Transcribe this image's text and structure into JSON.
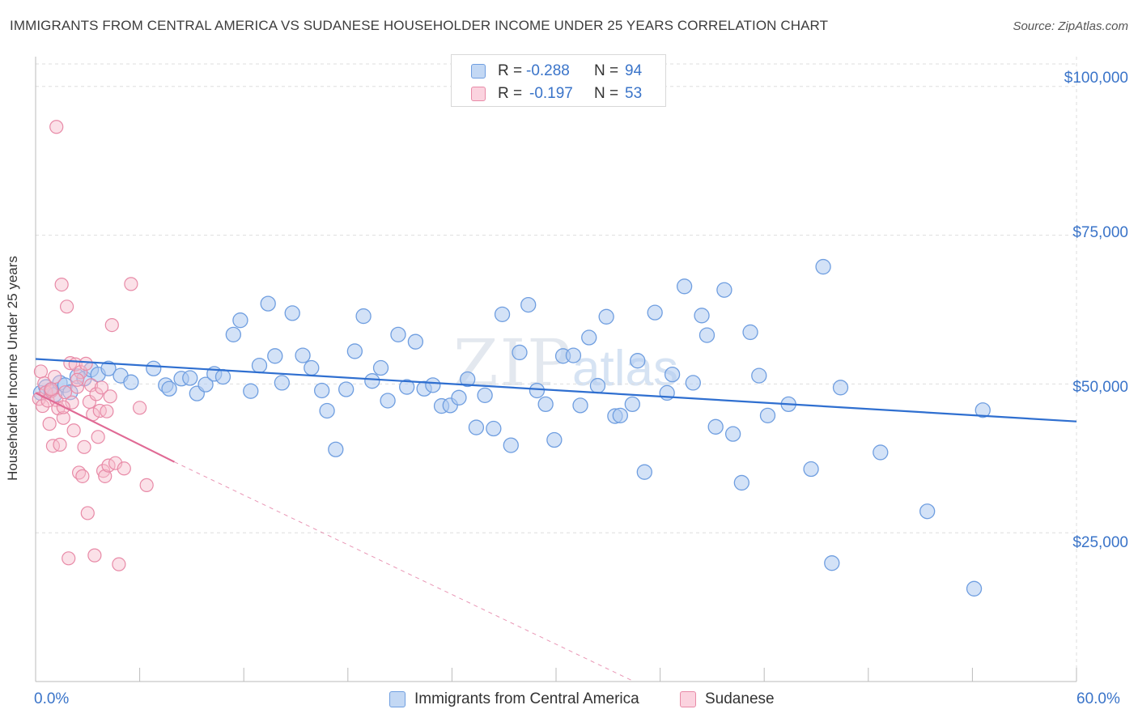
{
  "title": "IMMIGRANTS FROM CENTRAL AMERICA VS SUDANESE HOUSEHOLDER INCOME UNDER 25 YEARS CORRELATION CHART",
  "source": "Source: ZipAtlas.com",
  "watermark": {
    "zip": "ZIP",
    "atlas": "atlas"
  },
  "legend": {
    "rows": [
      {
        "r_label": "R =",
        "r_value": "-0.288",
        "n_label": "N =",
        "n_value": "94"
      },
      {
        "r_label": "R =",
        "r_value": "-0.197",
        "n_label": "N =",
        "n_value": "53"
      }
    ]
  },
  "colors": {
    "blue_fill": "#aecbf0",
    "blue_stroke": "#6f9ee0",
    "blue_line": "#2f6fd0",
    "pink_fill": "#f7bccd",
    "pink_stroke": "#e88aa7",
    "pink_line": "#e06a95",
    "tick_text": "#3a74c9",
    "grid": "#dedede"
  },
  "chart_data": {
    "type": "scatter",
    "title": "IMMIGRANTS FROM CENTRAL AMERICA VS SUDANESE HOUSEHOLDER INCOME UNDER 25 YEARS CORRELATION CHART",
    "xlabel": "",
    "ylabel": "Householder Income Under 25 years",
    "xlim": [
      0,
      60
    ],
    "ylim": [
      0,
      105000
    ],
    "x_tick_labels": [
      "0.0%",
      "60.0%"
    ],
    "y_ticks": [
      25000,
      50000,
      75000,
      100000
    ],
    "y_tick_labels": [
      "$25,000",
      "$50,000",
      "$75,000",
      "$100,000"
    ],
    "grid": true,
    "legend_position": "top-center",
    "series": [
      {
        "name": "Immigrants from Central America",
        "color": "#aecbf0",
        "r": -0.288,
        "n": 94,
        "trend": {
          "x": [
            0,
            60
          ],
          "y": [
            54200,
            43700
          ]
        },
        "points": [
          [
            0.3,
            48500
          ],
          [
            0.6,
            49500
          ],
          [
            0.9,
            49000
          ],
          [
            1.1,
            48200
          ],
          [
            1.4,
            50200
          ],
          [
            1.7,
            49800
          ],
          [
            2.0,
            48600
          ],
          [
            2.4,
            51300
          ],
          [
            2.8,
            50900
          ],
          [
            3.2,
            52400
          ],
          [
            3.6,
            51600
          ],
          [
            4.2,
            52600
          ],
          [
            4.9,
            51400
          ],
          [
            5.5,
            50300
          ],
          [
            6.8,
            52600
          ],
          [
            7.5,
            49800
          ],
          [
            7.7,
            49200
          ],
          [
            8.4,
            50900
          ],
          [
            8.9,
            51000
          ],
          [
            9.3,
            48400
          ],
          [
            9.8,
            49900
          ],
          [
            10.3,
            51700
          ],
          [
            10.8,
            51200
          ],
          [
            11.4,
            58300
          ],
          [
            11.8,
            60700
          ],
          [
            12.4,
            48800
          ],
          [
            12.9,
            53100
          ],
          [
            13.4,
            63500
          ],
          [
            13.8,
            54700
          ],
          [
            14.2,
            50200
          ],
          [
            14.8,
            61900
          ],
          [
            15.4,
            54800
          ],
          [
            15.9,
            52700
          ],
          [
            16.5,
            48900
          ],
          [
            16.8,
            45500
          ],
          [
            17.3,
            39000
          ],
          [
            17.9,
            49100
          ],
          [
            18.4,
            55500
          ],
          [
            18.9,
            61400
          ],
          [
            19.4,
            50500
          ],
          [
            19.9,
            52700
          ],
          [
            20.3,
            47200
          ],
          [
            20.9,
            58300
          ],
          [
            21.4,
            49500
          ],
          [
            21.9,
            57100
          ],
          [
            22.4,
            49200
          ],
          [
            22.9,
            49800
          ],
          [
            23.4,
            46300
          ],
          [
            23.9,
            46400
          ],
          [
            24.4,
            47700
          ],
          [
            24.9,
            50800
          ],
          [
            25.4,
            42700
          ],
          [
            25.9,
            48100
          ],
          [
            26.4,
            42500
          ],
          [
            26.9,
            61700
          ],
          [
            27.4,
            39700
          ],
          [
            27.9,
            55300
          ],
          [
            28.4,
            63300
          ],
          [
            28.9,
            48900
          ],
          [
            29.4,
            46600
          ],
          [
            29.9,
            40600
          ],
          [
            30.4,
            54700
          ],
          [
            31.0,
            54800
          ],
          [
            31.4,
            46400
          ],
          [
            31.9,
            57800
          ],
          [
            32.4,
            49700
          ],
          [
            32.9,
            61300
          ],
          [
            33.4,
            44600
          ],
          [
            33.7,
            44700
          ],
          [
            34.4,
            46600
          ],
          [
            34.7,
            53900
          ],
          [
            35.1,
            35200
          ],
          [
            35.7,
            62000
          ],
          [
            36.4,
            48500
          ],
          [
            36.7,
            51600
          ],
          [
            37.4,
            66400
          ],
          [
            37.9,
            50200
          ],
          [
            38.4,
            61500
          ],
          [
            38.7,
            58200
          ],
          [
            39.2,
            42800
          ],
          [
            39.7,
            65800
          ],
          [
            40.2,
            41600
          ],
          [
            40.7,
            33400
          ],
          [
            41.2,
            58700
          ],
          [
            41.7,
            51400
          ],
          [
            42.2,
            44700
          ],
          [
            43.4,
            46600
          ],
          [
            44.7,
            35700
          ],
          [
            45.4,
            69700
          ],
          [
            45.9,
            19900
          ],
          [
            46.4,
            49400
          ],
          [
            48.7,
            38500
          ],
          [
            51.4,
            28600
          ],
          [
            54.1,
            15600
          ],
          [
            54.6,
            45600
          ]
        ]
      },
      {
        "name": "Sudanese",
        "color": "#f7bccd",
        "r": -0.197,
        "n": 53,
        "trend": {
          "x": [
            0,
            8
          ],
          "y": [
            48500,
            36900
          ]
        },
        "trend_dashed": {
          "x": [
            8,
            34.5
          ],
          "y": [
            36900,
            0
          ]
        },
        "points": [
          [
            0.2,
            47500
          ],
          [
            0.3,
            52100
          ],
          [
            0.4,
            46300
          ],
          [
            0.5,
            50100
          ],
          [
            0.6,
            48600
          ],
          [
            0.7,
            47200
          ],
          [
            0.8,
            43300
          ],
          [
            0.9,
            48800
          ],
          [
            1.0,
            39600
          ],
          [
            1.1,
            51200
          ],
          [
            1.2,
            47300
          ],
          [
            1.3,
            45900
          ],
          [
            1.4,
            39800
          ],
          [
            1.5,
            66700
          ],
          [
            1.6,
            44300
          ],
          [
            1.7,
            48600
          ],
          [
            1.8,
            63000
          ],
          [
            1.9,
            20700
          ],
          [
            2.0,
            53500
          ],
          [
            2.1,
            46900
          ],
          [
            2.2,
            42200
          ],
          [
            2.3,
            53300
          ],
          [
            2.4,
            49500
          ],
          [
            2.5,
            35100
          ],
          [
            2.6,
            52000
          ],
          [
            2.7,
            34500
          ],
          [
            2.8,
            39400
          ],
          [
            2.9,
            53400
          ],
          [
            3.0,
            28300
          ],
          [
            3.1,
            47000
          ],
          [
            3.2,
            49800
          ],
          [
            3.3,
            44900
          ],
          [
            3.4,
            21200
          ],
          [
            3.5,
            48300
          ],
          [
            3.6,
            41100
          ],
          [
            3.7,
            45500
          ],
          [
            3.8,
            49400
          ],
          [
            3.9,
            35400
          ],
          [
            4.0,
            34500
          ],
          [
            4.1,
            45400
          ],
          [
            4.2,
            36300
          ],
          [
            4.3,
            47900
          ],
          [
            4.4,
            59900
          ],
          [
            4.6,
            36700
          ],
          [
            4.8,
            19700
          ],
          [
            5.1,
            35800
          ],
          [
            5.5,
            66800
          ],
          [
            6.0,
            46000
          ],
          [
            6.4,
            33000
          ],
          [
            1.2,
            93200
          ],
          [
            0.9,
            49100
          ],
          [
            2.4,
            50700
          ],
          [
            1.6,
            46100
          ]
        ]
      }
    ]
  },
  "bottom_legend": [
    "Immigrants from Central America",
    "Sudanese"
  ]
}
